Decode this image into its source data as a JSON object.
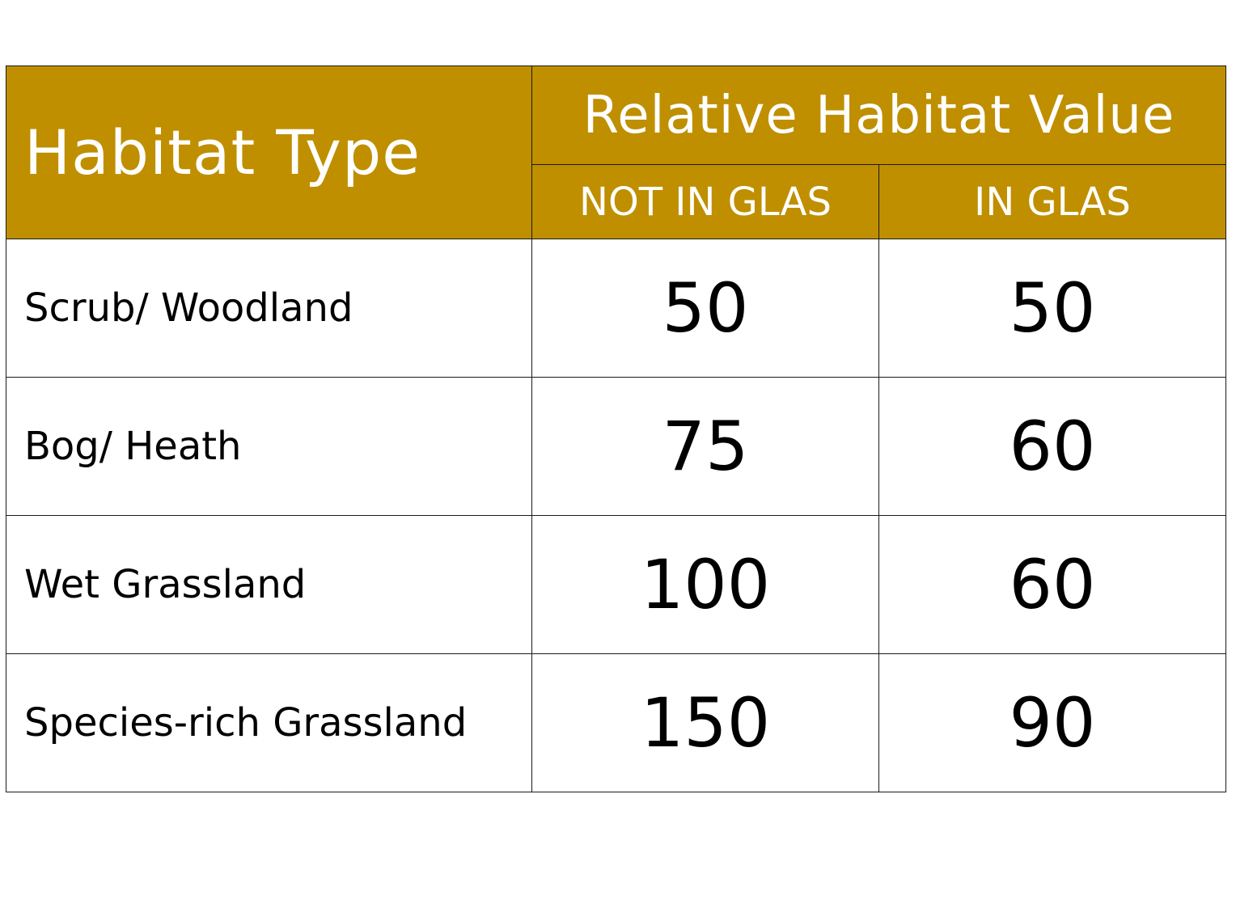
{
  "chart_data": {
    "type": "table",
    "header": {
      "row_header": "Habitat Type",
      "group_header": "Relative Habitat Value",
      "columns": [
        "NOT IN GLAS",
        "IN GLAS"
      ]
    },
    "rows": [
      {
        "label": "Scrub/ Woodland",
        "values": [
          "50",
          "50"
        ]
      },
      {
        "label": "Bog/ Heath",
        "values": [
          "75",
          "60"
        ]
      },
      {
        "label": "Wet Grassland",
        "values": [
          "100",
          "60"
        ]
      },
      {
        "label": "Species-rich Grassland",
        "values": [
          "150",
          "90"
        ]
      }
    ],
    "colors": {
      "header_background": "#bf8f00",
      "header_text": "#ffffff",
      "body_text": "#000000",
      "border": "#1a1a1a"
    }
  }
}
